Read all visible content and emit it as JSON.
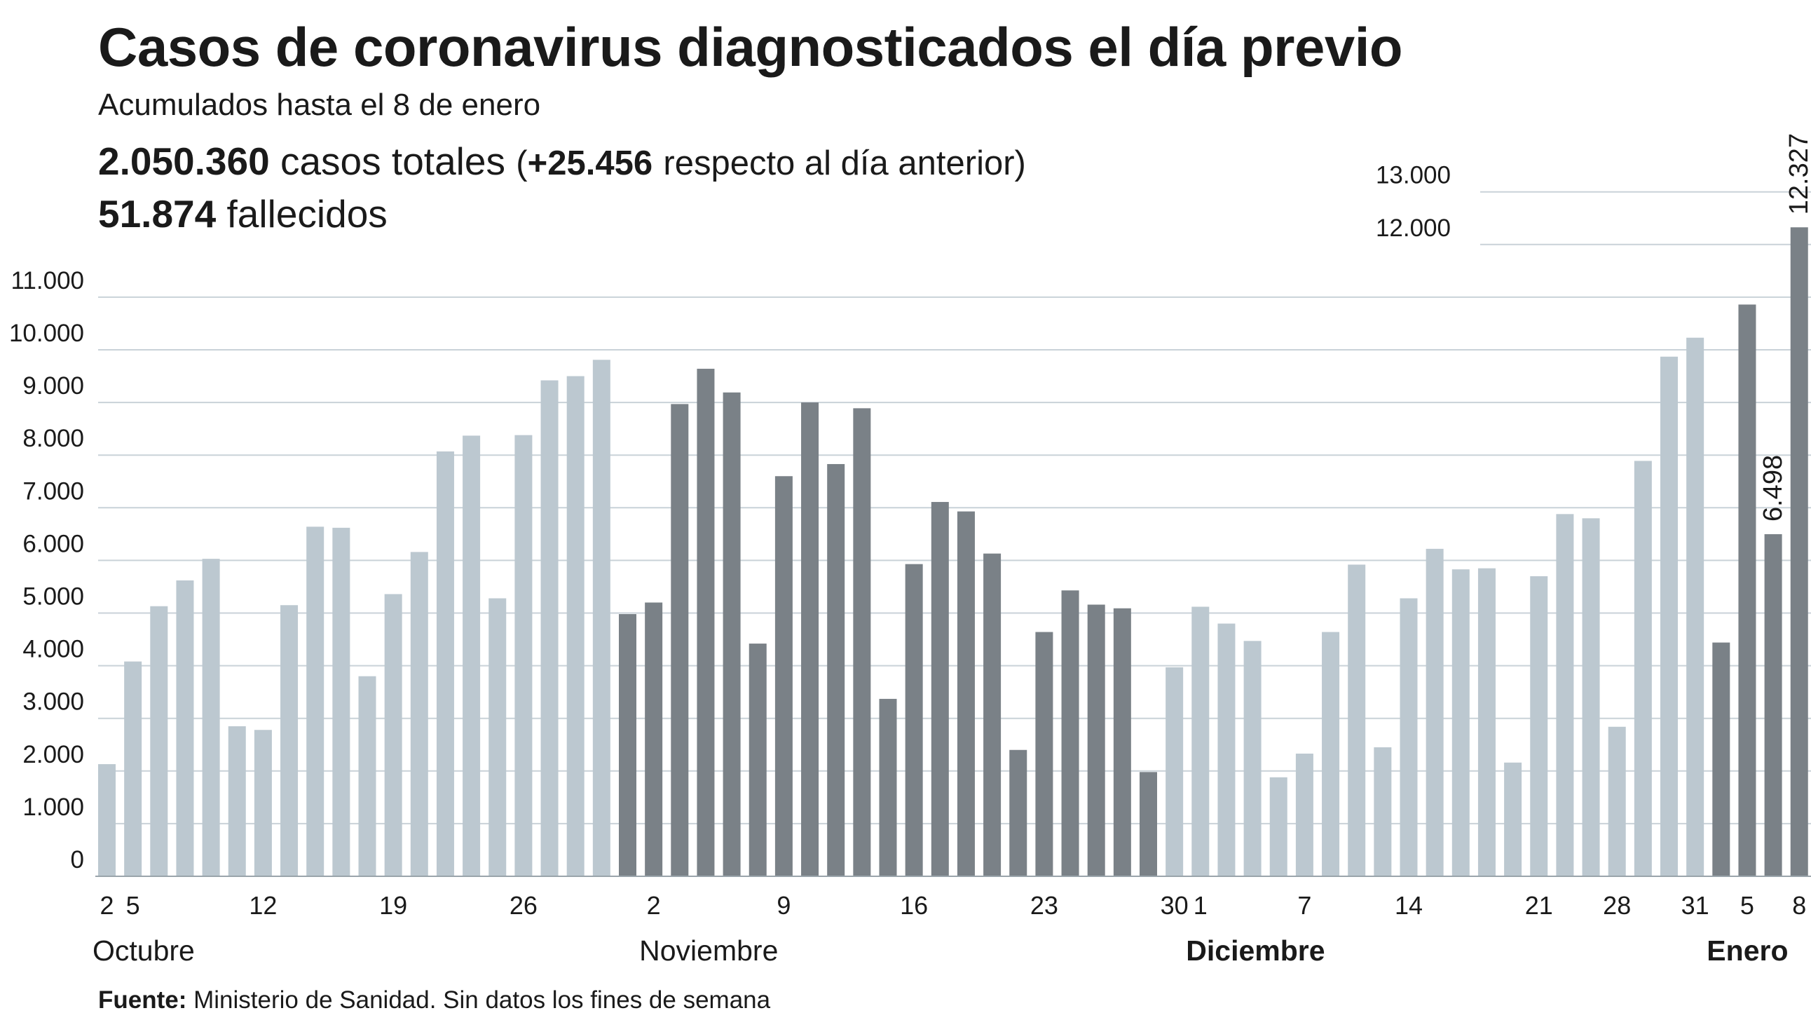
{
  "header": {
    "title": "Casos de coronavirus diagnosticados el día previo",
    "subtitle": "Acumulados hasta el 8 de enero",
    "total_cases_value": "2.050.360",
    "total_cases_label": "casos totales",
    "paren_open": "(",
    "daily_increase_value": "+25.456",
    "daily_increase_label": "respecto al día anterior)",
    "deaths_value": "51.874",
    "deaths_label": "fallecidos"
  },
  "footer": {
    "source_label": "Fuente:",
    "source_text": "Ministerio de Sanidad. Sin datos los fines de semana"
  },
  "colors": {
    "light_bar": "#bcc8d0",
    "dark_bar": "#7a8187",
    "gridline": "#c9d2d8",
    "text": "#1a1a1a"
  },
  "chart_data": {
    "type": "bar",
    "ylim": [
      0,
      13000
    ],
    "y_ticks": [
      {
        "value": 0,
        "label": "0"
      },
      {
        "value": 1000,
        "label": "1.000"
      },
      {
        "value": 2000,
        "label": "2.000"
      },
      {
        "value": 3000,
        "label": "3.000"
      },
      {
        "value": 4000,
        "label": "4.000"
      },
      {
        "value": 5000,
        "label": "5.000"
      },
      {
        "value": 6000,
        "label": "6.000"
      },
      {
        "value": 7000,
        "label": "7.000"
      },
      {
        "value": 8000,
        "label": "8.000"
      },
      {
        "value": 9000,
        "label": "9.000"
      },
      {
        "value": 10000,
        "label": "10.000"
      },
      {
        "value": 11000,
        "label": "11.000"
      },
      {
        "value": 12000,
        "label": "12.000"
      },
      {
        "value": 13000,
        "label": "13.000"
      }
    ],
    "x_ticks": [
      {
        "index": 0,
        "label": "2"
      },
      {
        "index": 1,
        "label": "5"
      },
      {
        "index": 6,
        "label": "12"
      },
      {
        "index": 11,
        "label": "19"
      },
      {
        "index": 16,
        "label": "26"
      },
      {
        "index": 21,
        "label": "2"
      },
      {
        "index": 26,
        "label": "9"
      },
      {
        "index": 31,
        "label": "16"
      },
      {
        "index": 36,
        "label": "23"
      },
      {
        "index": 41,
        "label": "30"
      },
      {
        "index": 42,
        "label": "1"
      },
      {
        "index": 46,
        "label": "7"
      },
      {
        "index": 50,
        "label": "14"
      },
      {
        "index": 55,
        "label": "21"
      },
      {
        "index": 58,
        "label": "28"
      },
      {
        "index": 61,
        "label": "31"
      },
      {
        "index": 63,
        "label": "5"
      },
      {
        "index": 65,
        "label": "8"
      }
    ],
    "months": [
      {
        "label": "Octubre",
        "start": 0,
        "end": 20,
        "bold": false
      },
      {
        "label": "Noviembre",
        "start": 21,
        "end": 41,
        "bold": false
      },
      {
        "label": "Diciembre",
        "start": 42,
        "end": 61,
        "bold": true
      },
      {
        "label": "Enero",
        "start": 62,
        "end": 65,
        "bold": true
      }
    ],
    "series": [
      {
        "values": [
          2130,
          4080,
          5130,
          5620,
          6030,
          2850,
          2780,
          5150,
          6640,
          6620,
          3800,
          5360,
          6160,
          8070,
          8370,
          5280,
          8380,
          9420,
          9500,
          9810,
          4980,
          5200,
          8970,
          9640,
          9190,
          4420,
          7600,
          9000,
          7830,
          8890,
          3370,
          5930,
          7110,
          6930,
          6130,
          2400,
          4640,
          5430,
          5160,
          5090,
          1980,
          3970,
          5120,
          4800,
          4470,
          1880,
          2330,
          4640,
          5920,
          2450,
          5280,
          6220,
          5830,
          5850,
          2160,
          5700,
          6880,
          6800,
          2840,
          7890,
          9870,
          10230,
          4440,
          10860,
          6498,
          12327
        ],
        "shade": [
          "light",
          "light",
          "light",
          "light",
          "light",
          "light",
          "light",
          "light",
          "light",
          "light",
          "light",
          "light",
          "light",
          "light",
          "light",
          "light",
          "light",
          "light",
          "light",
          "light",
          "dark",
          "dark",
          "dark",
          "dark",
          "dark",
          "dark",
          "dark",
          "dark",
          "dark",
          "dark",
          "dark",
          "dark",
          "dark",
          "dark",
          "dark",
          "dark",
          "dark",
          "dark",
          "dark",
          "dark",
          "dark",
          "light",
          "light",
          "light",
          "light",
          "light",
          "light",
          "light",
          "light",
          "light",
          "light",
          "light",
          "light",
          "light",
          "light",
          "light",
          "light",
          "light",
          "light",
          "light",
          "light",
          "light",
          "dark",
          "dark",
          "dark",
          "dark"
        ]
      }
    ],
    "annotations": [
      {
        "index": 64,
        "label": "6.498"
      },
      {
        "index": 65,
        "label": "12.327"
      }
    ]
  }
}
